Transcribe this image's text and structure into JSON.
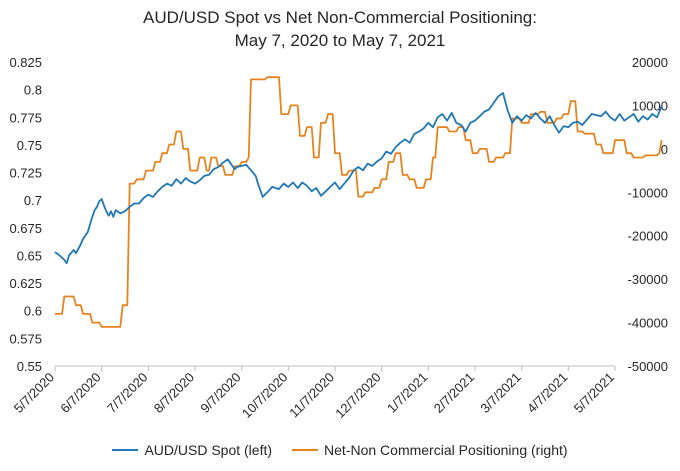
{
  "colors": {
    "spot": "#1f77b4",
    "positioning": "#e5841e"
  },
  "chart_data": {
    "type": "line",
    "title": "AUD/USD Spot vs Net Non-Commercial Positioning:",
    "subtitle": "May 7, 2020 to May 7, 2021",
    "x_ticks": [
      "5/7/2020",
      "6/7/2020",
      "7/7/2020",
      "8/7/2020",
      "9/7/2020",
      "10/7/2020",
      "11/7/2020",
      "12/7/2020",
      "1/7/2021",
      "2/7/2021",
      "3/7/2021",
      "4/7/2021",
      "5/7/2021"
    ],
    "y_left": {
      "min": 0.55,
      "max": 0.825,
      "ticks": [
        "0.825",
        "0.8",
        "0.775",
        "0.75",
        "0.725",
        "0.7",
        "0.675",
        "0.65",
        "0.625",
        "0.6",
        "0.575",
        "0.55"
      ]
    },
    "y_right": {
      "min": -50000,
      "max": 20000,
      "ticks": [
        "20000",
        "10000",
        "0",
        "-10000",
        "-20000",
        "-30000",
        "-40000",
        "-50000"
      ]
    },
    "grid": false,
    "legend_position": "bottom",
    "series": [
      {
        "name": "AUD/USD Spot (left)",
        "axis": "left",
        "points": [
          [
            0,
            0.653
          ],
          [
            0.1,
            0.65
          ],
          [
            0.2,
            0.646
          ],
          [
            0.25,
            0.643
          ],
          [
            0.3,
            0.65
          ],
          [
            0.4,
            0.655
          ],
          [
            0.45,
            0.652
          ],
          [
            0.55,
            0.66
          ],
          [
            0.6,
            0.665
          ],
          [
            0.7,
            0.671
          ],
          [
            0.75,
            0.678
          ],
          [
            0.8,
            0.685
          ],
          [
            0.85,
            0.691
          ],
          [
            0.9,
            0.694
          ],
          [
            0.95,
            0.699
          ],
          [
            1.0,
            0.701
          ],
          [
            1.05,
            0.695
          ],
          [
            1.1,
            0.69
          ],
          [
            1.15,
            0.686
          ],
          [
            1.2,
            0.69
          ],
          [
            1.25,
            0.685
          ],
          [
            1.3,
            0.691
          ],
          [
            1.4,
            0.688
          ],
          [
            1.5,
            0.69
          ],
          [
            1.6,
            0.694
          ],
          [
            1.7,
            0.697
          ],
          [
            1.8,
            0.697
          ],
          [
            1.9,
            0.702
          ],
          [
            2.0,
            0.705
          ],
          [
            2.1,
            0.703
          ],
          [
            2.2,
            0.708
          ],
          [
            2.3,
            0.712
          ],
          [
            2.4,
            0.715
          ],
          [
            2.5,
            0.713
          ],
          [
            2.6,
            0.719
          ],
          [
            2.7,
            0.715
          ],
          [
            2.8,
            0.72
          ],
          [
            2.9,
            0.717
          ],
          [
            3.0,
            0.715
          ],
          [
            3.1,
            0.718
          ],
          [
            3.2,
            0.722
          ],
          [
            3.3,
            0.723
          ],
          [
            3.4,
            0.728
          ],
          [
            3.5,
            0.73
          ],
          [
            3.6,
            0.734
          ],
          [
            3.7,
            0.737
          ],
          [
            3.8,
            0.731
          ],
          [
            3.85,
            0.728
          ],
          [
            3.9,
            0.73
          ],
          [
            4.0,
            0.731
          ],
          [
            4.1,
            0.732
          ],
          [
            4.2,
            0.727
          ],
          [
            4.3,
            0.722
          ],
          [
            4.35,
            0.715
          ],
          [
            4.45,
            0.703
          ],
          [
            4.55,
            0.707
          ],
          [
            4.65,
            0.712
          ],
          [
            4.8,
            0.71
          ],
          [
            4.9,
            0.715
          ],
          [
            5.0,
            0.712
          ],
          [
            5.1,
            0.716
          ],
          [
            5.2,
            0.711
          ],
          [
            5.3,
            0.716
          ],
          [
            5.4,
            0.713
          ],
          [
            5.5,
            0.708
          ],
          [
            5.6,
            0.711
          ],
          [
            5.7,
            0.704
          ],
          [
            5.8,
            0.708
          ],
          [
            5.9,
            0.712
          ],
          [
            6.0,
            0.716
          ],
          [
            6.1,
            0.71
          ],
          [
            6.2,
            0.715
          ],
          [
            6.3,
            0.72
          ],
          [
            6.4,
            0.727
          ],
          [
            6.5,
            0.73
          ],
          [
            6.6,
            0.727
          ],
          [
            6.7,
            0.733
          ],
          [
            6.8,
            0.731
          ],
          [
            6.9,
            0.735
          ],
          [
            7.0,
            0.738
          ],
          [
            7.1,
            0.744
          ],
          [
            7.2,
            0.742
          ],
          [
            7.3,
            0.748
          ],
          [
            7.4,
            0.752
          ],
          [
            7.5,
            0.755
          ],
          [
            7.6,
            0.752
          ],
          [
            7.7,
            0.76
          ],
          [
            7.8,
            0.762
          ],
          [
            7.9,
            0.765
          ],
          [
            8.0,
            0.77
          ],
          [
            8.1,
            0.766
          ],
          [
            8.2,
            0.775
          ],
          [
            8.3,
            0.778
          ],
          [
            8.4,
            0.772
          ],
          [
            8.5,
            0.779
          ],
          [
            8.6,
            0.77
          ],
          [
            8.7,
            0.768
          ],
          [
            8.8,
            0.762
          ],
          [
            8.9,
            0.77
          ],
          [
            9.0,
            0.772
          ],
          [
            9.1,
            0.776
          ],
          [
            9.2,
            0.78
          ],
          [
            9.3,
            0.782
          ],
          [
            9.4,
            0.788
          ],
          [
            9.5,
            0.794
          ],
          [
            9.6,
            0.797
          ],
          [
            9.7,
            0.781
          ],
          [
            9.8,
            0.77
          ],
          [
            9.9,
            0.776
          ],
          [
            10.0,
            0.772
          ],
          [
            10.1,
            0.777
          ],
          [
            10.2,
            0.774
          ],
          [
            10.3,
            0.779
          ],
          [
            10.4,
            0.774
          ],
          [
            10.5,
            0.77
          ],
          [
            10.6,
            0.776
          ],
          [
            10.7,
            0.768
          ],
          [
            10.8,
            0.761
          ],
          [
            10.9,
            0.767
          ],
          [
            11.0,
            0.766
          ],
          [
            11.1,
            0.77
          ],
          [
            11.2,
            0.771
          ],
          [
            11.3,
            0.768
          ],
          [
            11.4,
            0.773
          ],
          [
            11.5,
            0.778
          ],
          [
            11.6,
            0.777
          ],
          [
            11.7,
            0.776
          ],
          [
            11.8,
            0.78
          ],
          [
            11.9,
            0.775
          ],
          [
            12.0,
            0.772
          ],
          [
            12.1,
            0.778
          ],
          [
            12.2,
            0.772
          ],
          [
            12.3,
            0.775
          ],
          [
            12.4,
            0.778
          ],
          [
            12.5,
            0.771
          ],
          [
            12.6,
            0.776
          ],
          [
            12.7,
            0.773
          ],
          [
            12.8,
            0.778
          ],
          [
            12.9,
            0.775
          ],
          [
            13.0,
            0.785
          ]
        ]
      },
      {
        "name": "Net-Non Commercial Positioning (right)",
        "axis": "right",
        "points": [
          [
            0,
            -38000
          ],
          [
            0.15,
            -38000
          ],
          [
            0.2,
            -34000
          ],
          [
            0.4,
            -34000
          ],
          [
            0.45,
            -36000
          ],
          [
            0.55,
            -36000
          ],
          [
            0.6,
            -38000
          ],
          [
            0.75,
            -38000
          ],
          [
            0.8,
            -40000
          ],
          [
            0.95,
            -40000
          ],
          [
            1.0,
            -41000
          ],
          [
            1.4,
            -41000
          ],
          [
            1.45,
            -36000
          ],
          [
            1.55,
            -36000
          ],
          [
            1.6,
            -8000
          ],
          [
            1.7,
            -8000
          ],
          [
            1.75,
            -7000
          ],
          [
            1.9,
            -7000
          ],
          [
            1.95,
            -5000
          ],
          [
            2.1,
            -5000
          ],
          [
            2.15,
            -3000
          ],
          [
            2.25,
            -3000
          ],
          [
            2.3,
            -1000
          ],
          [
            2.4,
            -1000
          ],
          [
            2.45,
            1000
          ],
          [
            2.55,
            1000
          ],
          [
            2.6,
            4000
          ],
          [
            2.7,
            4000
          ],
          [
            2.75,
            0
          ],
          [
            2.85,
            0
          ],
          [
            2.9,
            -5000
          ],
          [
            3.05,
            -5000
          ],
          [
            3.1,
            -2000
          ],
          [
            3.2,
            -2000
          ],
          [
            3.25,
            -5000
          ],
          [
            3.3,
            -5000
          ],
          [
            3.35,
            -2000
          ],
          [
            3.45,
            -2000
          ],
          [
            3.5,
            -4000
          ],
          [
            3.6,
            -4000
          ],
          [
            3.65,
            -6000
          ],
          [
            3.8,
            -6000
          ],
          [
            3.85,
            -4000
          ],
          [
            3.95,
            -4000
          ],
          [
            4.0,
            -3000
          ],
          [
            4.1,
            -3000
          ],
          [
            4.15,
            -2000
          ],
          [
            4.2,
            16000
          ],
          [
            4.5,
            16000
          ],
          [
            4.55,
            16500
          ],
          [
            4.8,
            16500
          ],
          [
            4.85,
            8000
          ],
          [
            5.0,
            8000
          ],
          [
            5.05,
            10000
          ],
          [
            5.2,
            10000
          ],
          [
            5.25,
            3000
          ],
          [
            5.35,
            3000
          ],
          [
            5.4,
            5000
          ],
          [
            5.5,
            5000
          ],
          [
            5.55,
            -2000
          ],
          [
            5.65,
            -2000
          ],
          [
            5.7,
            6000
          ],
          [
            5.8,
            6000
          ],
          [
            5.85,
            8000
          ],
          [
            5.95,
            8000
          ],
          [
            6.0,
            -1000
          ],
          [
            6.1,
            -1000
          ],
          [
            6.15,
            -6000
          ],
          [
            6.25,
            -6000
          ],
          [
            6.3,
            -5000
          ],
          [
            6.45,
            -5000
          ],
          [
            6.5,
            -11000
          ],
          [
            6.6,
            -11000
          ],
          [
            6.65,
            -10000
          ],
          [
            6.8,
            -10000
          ],
          [
            6.85,
            -9000
          ],
          [
            6.95,
            -9000
          ],
          [
            7.0,
            -7000
          ],
          [
            7.1,
            -7000
          ],
          [
            7.15,
            -3000
          ],
          [
            7.25,
            -3000
          ],
          [
            7.3,
            -1000
          ],
          [
            7.4,
            -1000
          ],
          [
            7.45,
            -6000
          ],
          [
            7.55,
            -6000
          ],
          [
            7.6,
            -7000
          ],
          [
            7.7,
            -7000
          ],
          [
            7.75,
            -9000
          ],
          [
            7.9,
            -9000
          ],
          [
            7.95,
            -7000
          ],
          [
            8.05,
            -7000
          ],
          [
            8.1,
            -2000
          ],
          [
            8.15,
            -2000
          ],
          [
            8.2,
            5000
          ],
          [
            8.4,
            5000
          ],
          [
            8.45,
            4000
          ],
          [
            8.6,
            4000
          ],
          [
            8.65,
            5000
          ],
          [
            8.75,
            5000
          ],
          [
            8.8,
            2000
          ],
          [
            8.9,
            2000
          ],
          [
            8.95,
            -1000
          ],
          [
            9.05,
            -1000
          ],
          [
            9.1,
            0
          ],
          [
            9.25,
            0
          ],
          [
            9.3,
            -3000
          ],
          [
            9.4,
            -3000
          ],
          [
            9.45,
            -2000
          ],
          [
            9.6,
            -2000
          ],
          [
            9.65,
            -1000
          ],
          [
            9.75,
            -1000
          ],
          [
            9.8,
            7000
          ],
          [
            9.95,
            7000
          ],
          [
            10.0,
            6000
          ],
          [
            10.15,
            6000
          ],
          [
            10.2,
            8000
          ],
          [
            10.35,
            8000
          ],
          [
            10.4,
            8500
          ],
          [
            10.5,
            8500
          ],
          [
            10.55,
            6000
          ],
          [
            10.7,
            6000
          ],
          [
            10.75,
            7000
          ],
          [
            10.85,
            7000
          ],
          [
            10.9,
            8000
          ],
          [
            11.0,
            8000
          ],
          [
            11.05,
            11000
          ],
          [
            11.15,
            11000
          ],
          [
            11.2,
            4000
          ],
          [
            11.3,
            4000
          ],
          [
            11.35,
            3500
          ],
          [
            11.55,
            3500
          ],
          [
            11.6,
            1000
          ],
          [
            11.7,
            1000
          ],
          [
            11.75,
            -1000
          ],
          [
            11.95,
            -1000
          ],
          [
            12.0,
            2000
          ],
          [
            12.2,
            2000
          ],
          [
            12.25,
            -1000
          ],
          [
            12.35,
            -1000
          ],
          [
            12.4,
            -2000
          ],
          [
            12.6,
            -2000
          ],
          [
            12.65,
            -1500
          ],
          [
            12.9,
            -1500
          ],
          [
            12.95,
            -1000
          ],
          [
            13.0,
            2000
          ]
        ]
      }
    ]
  }
}
